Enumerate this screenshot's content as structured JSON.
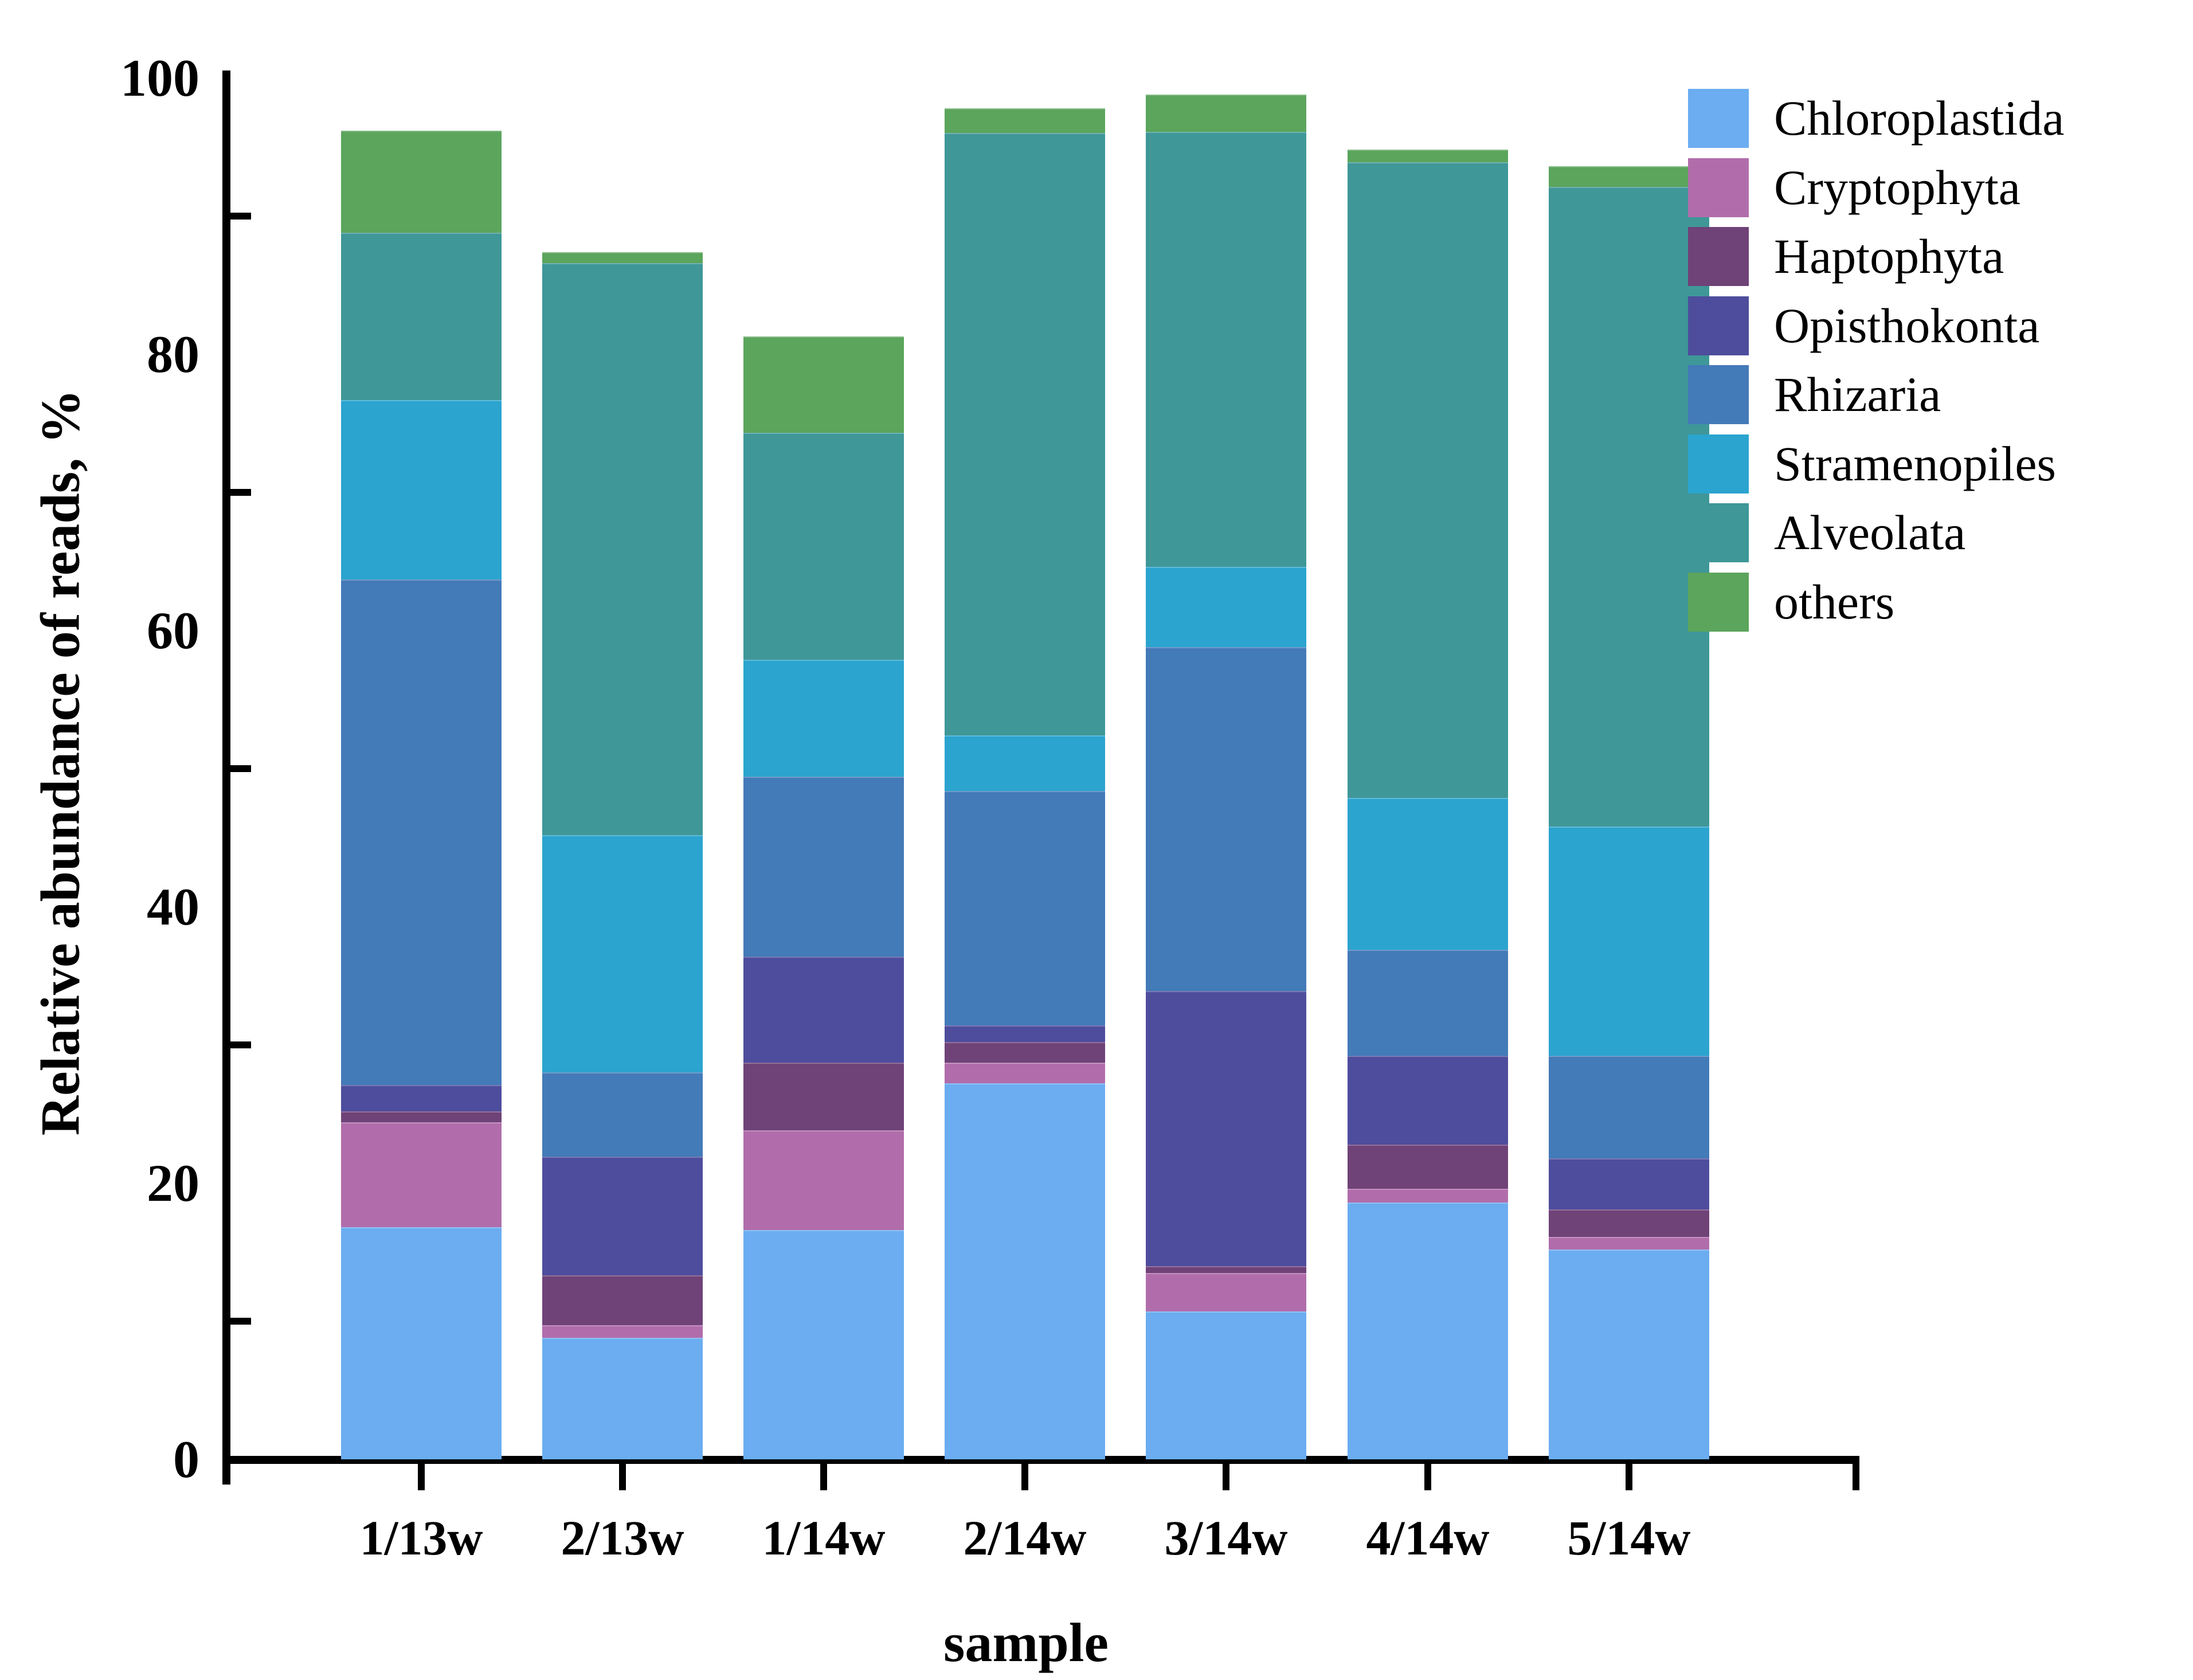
{
  "chart_data": {
    "type": "bar",
    "stacked": true,
    "title": "",
    "xlabel": "sample",
    "ylabel": "Relative abundance of reads, %",
    "ylim": [
      0,
      100
    ],
    "grid": false,
    "legend_position": "upper right",
    "y_major_ticks": [
      0,
      20,
      40,
      60,
      80,
      100
    ],
    "y_minor_ticks": [
      10,
      30,
      50,
      70,
      90
    ],
    "categories": [
      "1/13w",
      "2/13w",
      "1/14w",
      "2/14w",
      "3/14w",
      "4/14w",
      "5/14w"
    ],
    "series": [
      {
        "name": "Chloroplastida",
        "color": "#6badf0",
        "values": [
          16.8,
          8.8,
          16.6,
          27.2,
          10.7,
          18.6,
          15.2
        ]
      },
      {
        "name": "Cryptophyta",
        "color": "#b16dab",
        "values": [
          7.6,
          0.9,
          7.2,
          1.5,
          2.8,
          1.0,
          0.9
        ]
      },
      {
        "name": "Haptophyta",
        "color": "#6f4278",
        "values": [
          0.8,
          3.6,
          4.9,
          1.5,
          0.5,
          3.2,
          2.0
        ]
      },
      {
        "name": "Opisthokonta",
        "color": "#4e4d9d",
        "values": [
          1.9,
          8.6,
          7.7,
          1.2,
          19.9,
          6.4,
          3.7
        ]
      },
      {
        "name": "Rhizaria",
        "color": "#437ab8",
        "values": [
          36.6,
          6.1,
          13.0,
          17.0,
          24.9,
          7.7,
          7.4
        ]
      },
      {
        "name": "Stramenopiles",
        "color": "#2ba4cf",
        "values": [
          13.0,
          17.2,
          8.5,
          4.0,
          5.8,
          11.0,
          16.6
        ]
      },
      {
        "name": "Alveolata",
        "color": "#3f9798",
        "values": [
          12.1,
          41.4,
          16.4,
          43.6,
          31.5,
          46.0,
          46.3
        ]
      },
      {
        "name": "others",
        "color": "#5ba55c",
        "values": [
          7.4,
          0.8,
          7.0,
          1.8,
          2.7,
          0.9,
          1.5
        ]
      }
    ],
    "bar_totals": [
      96.2,
      87.4,
      81.3,
      97.8,
      98.8,
      94.8,
      93.6
    ],
    "axis_color": "#000000"
  }
}
